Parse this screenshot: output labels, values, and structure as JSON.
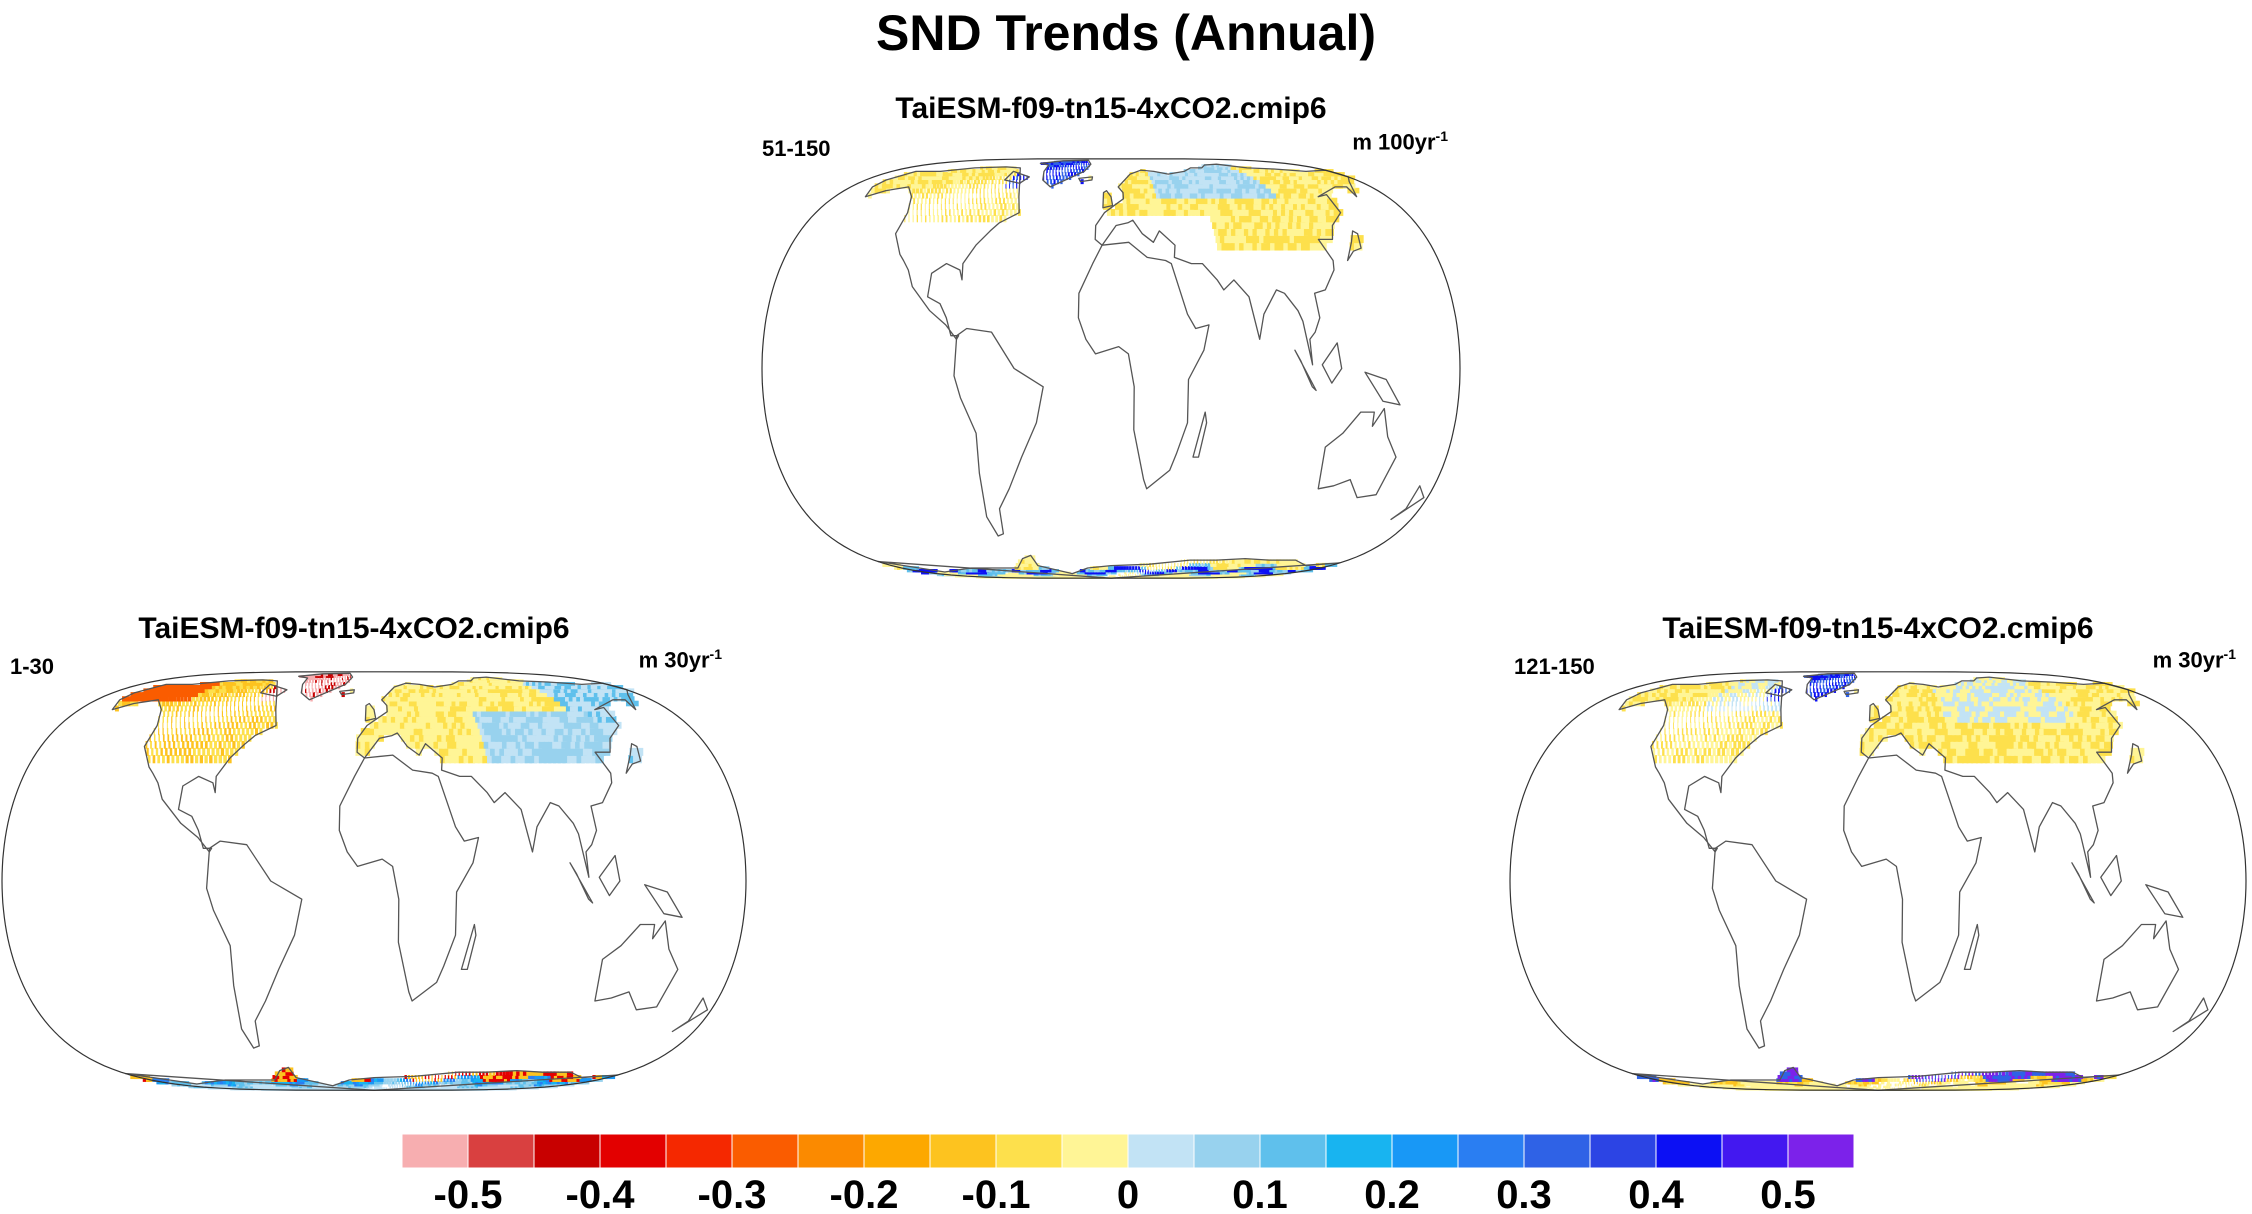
{
  "title": "SND Trends (Annual)",
  "panels": [
    {
      "id": "top",
      "title": "TaiESM-f09-tn15-4xCO2.cmip6",
      "period": "51-150",
      "units_base": "m 100yr",
      "units_exp": "-1"
    },
    {
      "id": "left",
      "title": "TaiESM-f09-tn15-4xCO2.cmip6",
      "period": "1-30",
      "units_base": "m 30yr",
      "units_exp": "-1"
    },
    {
      "id": "right",
      "title": "TaiESM-f09-tn15-4xCO2.cmip6",
      "period": "121-150",
      "units_base": "m 30yr",
      "units_exp": "-1"
    }
  ],
  "colorbar": {
    "colors": [
      "#f7aeb0",
      "#d94040",
      "#c80000",
      "#e30000",
      "#f52800",
      "#fa5c00",
      "#fb8a00",
      "#fda800",
      "#fdc31f",
      "#fde04c",
      "#fff596",
      "#c2e3f5",
      "#98d2ee",
      "#5fc0ec",
      "#18b4f0",
      "#1898f6",
      "#2a7ef2",
      "#2f62e6",
      "#2c44e4",
      "#0c10f4",
      "#4318f0",
      "#7c22ea"
    ],
    "labels": [
      "-0.5",
      "-0.4",
      "-0.3",
      "-0.2",
      "-0.1",
      "0",
      "0.1",
      "0.2",
      "0.3",
      "0.4",
      "0.5"
    ]
  }
}
